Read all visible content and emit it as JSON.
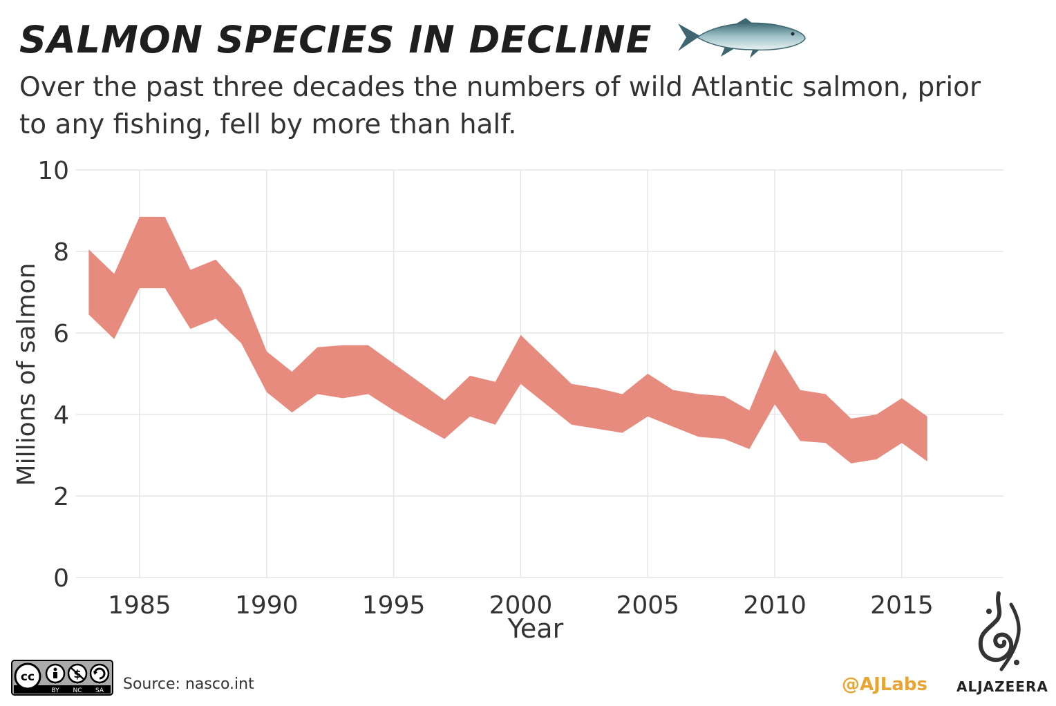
{
  "header": {
    "title": "Salmon species in decline",
    "subtitle": "Over the past three decades the numbers of wild Atlantic salmon, prior to any fishing, fell by more than half."
  },
  "footer": {
    "source": "Source: nasco.int",
    "handle": "@AJLabs",
    "brand": "ALJAZEERA",
    "license": [
      "BY",
      "NC",
      "SA"
    ]
  },
  "icons": [
    "salmon-fish-icon",
    "creative-commons-icon",
    "aljazeera-logo-icon"
  ],
  "colors": {
    "band": "#e68b7e",
    "grid": "#e6e6e6",
    "handle": "#e8a534"
  },
  "chart_data": {
    "type": "area",
    "title": "Salmon species in decline",
    "xlabel": "Year",
    "ylabel": "Millions of salmon",
    "xlim": [
      1982.5,
      2019
    ],
    "ylim": [
      0,
      10
    ],
    "xticks": [
      1985,
      1990,
      1995,
      2000,
      2005,
      2010,
      2015
    ],
    "yticks": [
      0,
      2,
      4,
      6,
      8,
      10
    ],
    "grid": true,
    "x": [
      1983,
      1984,
      1985,
      1986,
      1987,
      1988,
      1989,
      1990,
      1991,
      1992,
      1993,
      1994,
      1995,
      1996,
      1997,
      1998,
      1999,
      2000,
      2001,
      2002,
      2003,
      2004,
      2005,
      2006,
      2007,
      2008,
      2009,
      2010,
      2011,
      2012,
      2013,
      2014,
      2015,
      2016
    ],
    "upper": [
      8.05,
      7.45,
      8.85,
      8.85,
      7.55,
      7.8,
      7.1,
      5.55,
      5.05,
      5.65,
      5.7,
      5.7,
      5.25,
      4.8,
      4.35,
      4.95,
      4.8,
      5.95,
      5.35,
      4.75,
      4.65,
      4.5,
      5.0,
      4.6,
      4.5,
      4.45,
      4.1,
      5.6,
      4.6,
      4.5,
      3.9,
      4.0,
      4.4,
      3.95
    ],
    "lower": [
      6.45,
      5.85,
      7.1,
      7.1,
      6.1,
      6.35,
      5.75,
      4.55,
      4.05,
      4.5,
      4.4,
      4.5,
      4.1,
      3.75,
      3.4,
      3.95,
      3.75,
      4.75,
      4.25,
      3.75,
      3.65,
      3.55,
      3.95,
      3.7,
      3.45,
      3.4,
      3.15,
      4.25,
      3.35,
      3.3,
      2.8,
      2.9,
      3.3,
      2.85
    ]
  }
}
